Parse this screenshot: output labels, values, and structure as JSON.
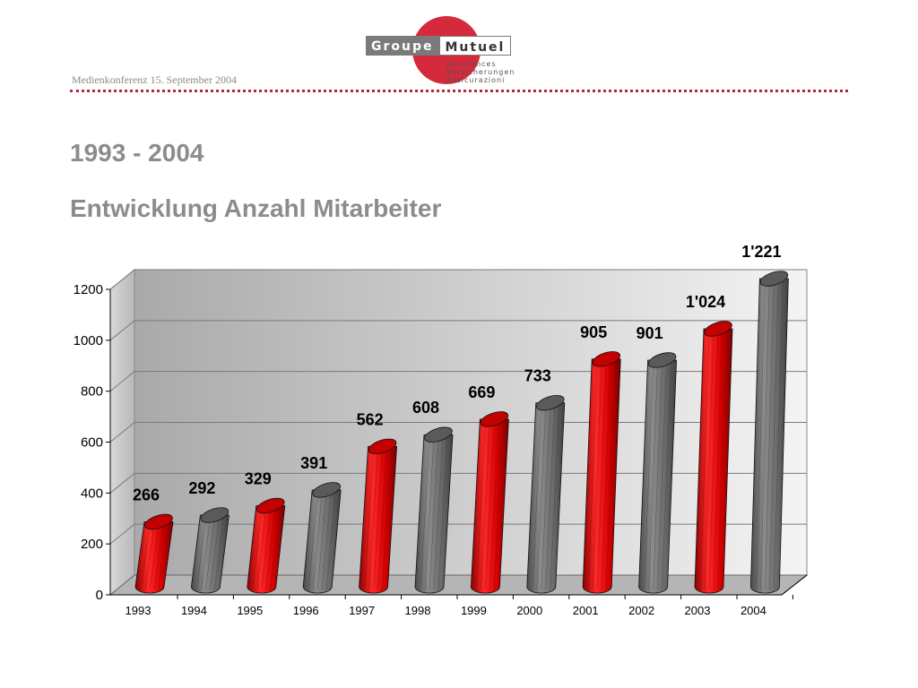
{
  "header": {
    "conference": "Medienkonferenz 15. September 2004",
    "logo": {
      "word1": "Groupe",
      "word2": "Mutuel",
      "tag1": "Assurances",
      "tag2": "Versicherungen",
      "tag3": "Assicurazioni",
      "colors": {
        "red": "#d42a3c",
        "gray": "#7a7a7a"
      }
    }
  },
  "titles": {
    "line1": "1993 - 2004",
    "line2": "Entwicklung Anzahl Mitarbeiter"
  },
  "chart_data": {
    "type": "bar",
    "title": "",
    "xlabel": "",
    "ylabel": "",
    "categories": [
      "1993",
      "1994",
      "1995",
      "1996",
      "1997",
      "1998",
      "1999",
      "2000",
      "2001",
      "2002",
      "2003",
      "2004"
    ],
    "values": [
      266,
      292,
      329,
      391,
      562,
      608,
      669,
      733,
      905,
      901,
      1024,
      1221
    ],
    "value_labels": [
      "266",
      "292",
      "329",
      "391",
      "562",
      "608",
      "669",
      "733",
      "905",
      "901",
      "1'024",
      "1'221"
    ],
    "bar_colors": [
      "red",
      "gray",
      "red",
      "gray",
      "red",
      "gray",
      "red",
      "gray",
      "red",
      "gray",
      "red",
      "gray"
    ],
    "colors": {
      "red": "#e01010",
      "gray": "#6e6e6e"
    },
    "ylim": [
      0,
      1200
    ],
    "yticks": [
      0,
      200,
      400,
      600,
      800,
      1000,
      1200
    ],
    "grid": true,
    "legend": "none",
    "style": "3d cylinders"
  }
}
